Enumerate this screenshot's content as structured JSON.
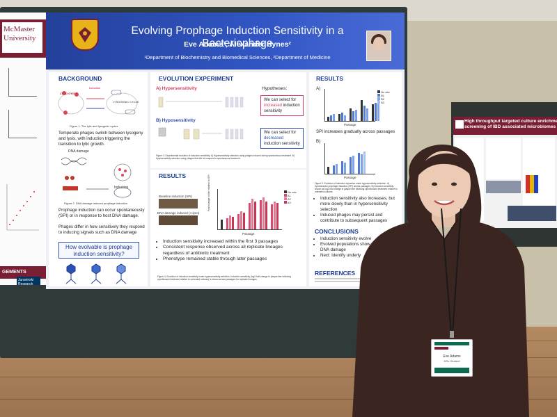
{
  "leftposter": {
    "university": "McMaster University",
    "band": "GEMENTS",
    "institute": "Juravinski Research Institute"
  },
  "tags": [
    "2",
    "56"
  ],
  "poster": {
    "title": "Evolving Prophage Induction Sensitivity in a Bacteriophage",
    "authors": "Eve Adams¹, Alexander Hynes²",
    "departments": "¹Department of Biochemistry and Biomedical Sciences, ²Department of Medicine",
    "background": {
      "heading": "BACKGROUND",
      "lifecycle_lytic": "LYTIC CYCLE",
      "lifecycle_lysogenic": "LYSOGENIC CYCLE",
      "induction": "Induction",
      "fig1_caption": "Figure 1. The lytic and lysogenic cycles",
      "p1": "Temperate phages switch between lysogeny and lysis, with induction triggering the transition to lytic growth.",
      "dna_damage": "DNA damage",
      "induction_label": "Induction",
      "fig2_caption": "Figure 2. DNA damage induced prophage induction",
      "p2": "Prophage induction can occur spontaneously (SPI) or in response to host DNA damage.",
      "p3": "Phages differ in how sensitively they respond to inducing signals such as DNA damage",
      "question": "How evolvable is prophage induction sensitivity?"
    },
    "evolution": {
      "heading": "EVOLUTION EXPERIMENT",
      "a_label": "A) Hypersensitivity",
      "b_label": "B) Hyposensitivity",
      "hyp_heading": "Hypotheses:",
      "hyp1_pre": "We can select for ",
      "hyp1_em": "increased",
      "hyp1_post": " induction sensitivity",
      "hyp2_pre": "We can select for ",
      "hyp2_em": "decreased",
      "hyp2_post": " induction sensitivity",
      "fig3_caption": "Figure 3. Experimental evolution of induction sensitivity. A) Hypersensitivity selection using phages induced during spontaneous treatment. B) Hyposensitivity selection using phages that did not respond to spontaneous treatment."
    },
    "results_mid": {
      "heading": "RESULTS",
      "baseline": "Baseline induction (SPI)",
      "dna_damage": "DNA damage induced (+cipro)",
      "ylabel": "Fold change in titer relative to SPI",
      "xlabel": "Passage",
      "legend": [
        "No abx",
        "A1",
        "A2",
        "A3"
      ],
      "bullets": [
        "Induction sensitivity increased within the first 3 passages",
        "Consistent response observed across all replicate lineages regardless of antibiotic treatment",
        "Phenotype remained stable through later passages"
      ],
      "fig4_caption": "Figure 4. Evolution of induction sensitivity under hypersensitivity selection. Induction sensitivity (log2-fold change in plaque titer following ciprofloxacin treatment relative to untreated cultures) is shown across passages for replicate lineages."
    },
    "results_right": {
      "heading": "RESULTS",
      "a": "A)",
      "b": "B)",
      "spi_note": "SPI increases gradually across passages",
      "xlabel": "Passage",
      "legend": [
        "No abx",
        "B1",
        "B2",
        "B3"
      ],
      "fig5_caption": "Figure 5. Evolution of induction dynamics under hyposensitivity selection. A) Spontaneous prophage induction (SPI) across passages. B) Induction sensitivity shown as log2-fold change in plaque titer following ciprofloxacin treatment relative to untreated cultures.",
      "bullets": [
        "Induction sensitivity also increases, but more slowly than in hypersensitivity selection",
        "Induced phages may persist and contribute to subsequent passages"
      ]
    },
    "conclusions": {
      "heading": "CONCLUSIONS",
      "bullets": [
        "Induction sensitivity evolve",
        "Evolved populations show responses to DNA damage",
        "Next: Identify underly"
      ]
    },
    "references": {
      "heading": "REFERENCES"
    }
  },
  "rightposter": {
    "title_line1": "High throughput targeted culture enrichment and fu",
    "title_line2": "screening of IBD associated microbiomes"
  },
  "badge": {
    "name": "Eve Adams",
    "role": "MSc Student"
  },
  "colors": {
    "banner": "#2a4ab4",
    "mcmaster_maroon": "#7a1f33",
    "accent_pink": "#e0506f",
    "accent_blue": "#2b4fb2",
    "sweater": "#3a2520"
  }
}
